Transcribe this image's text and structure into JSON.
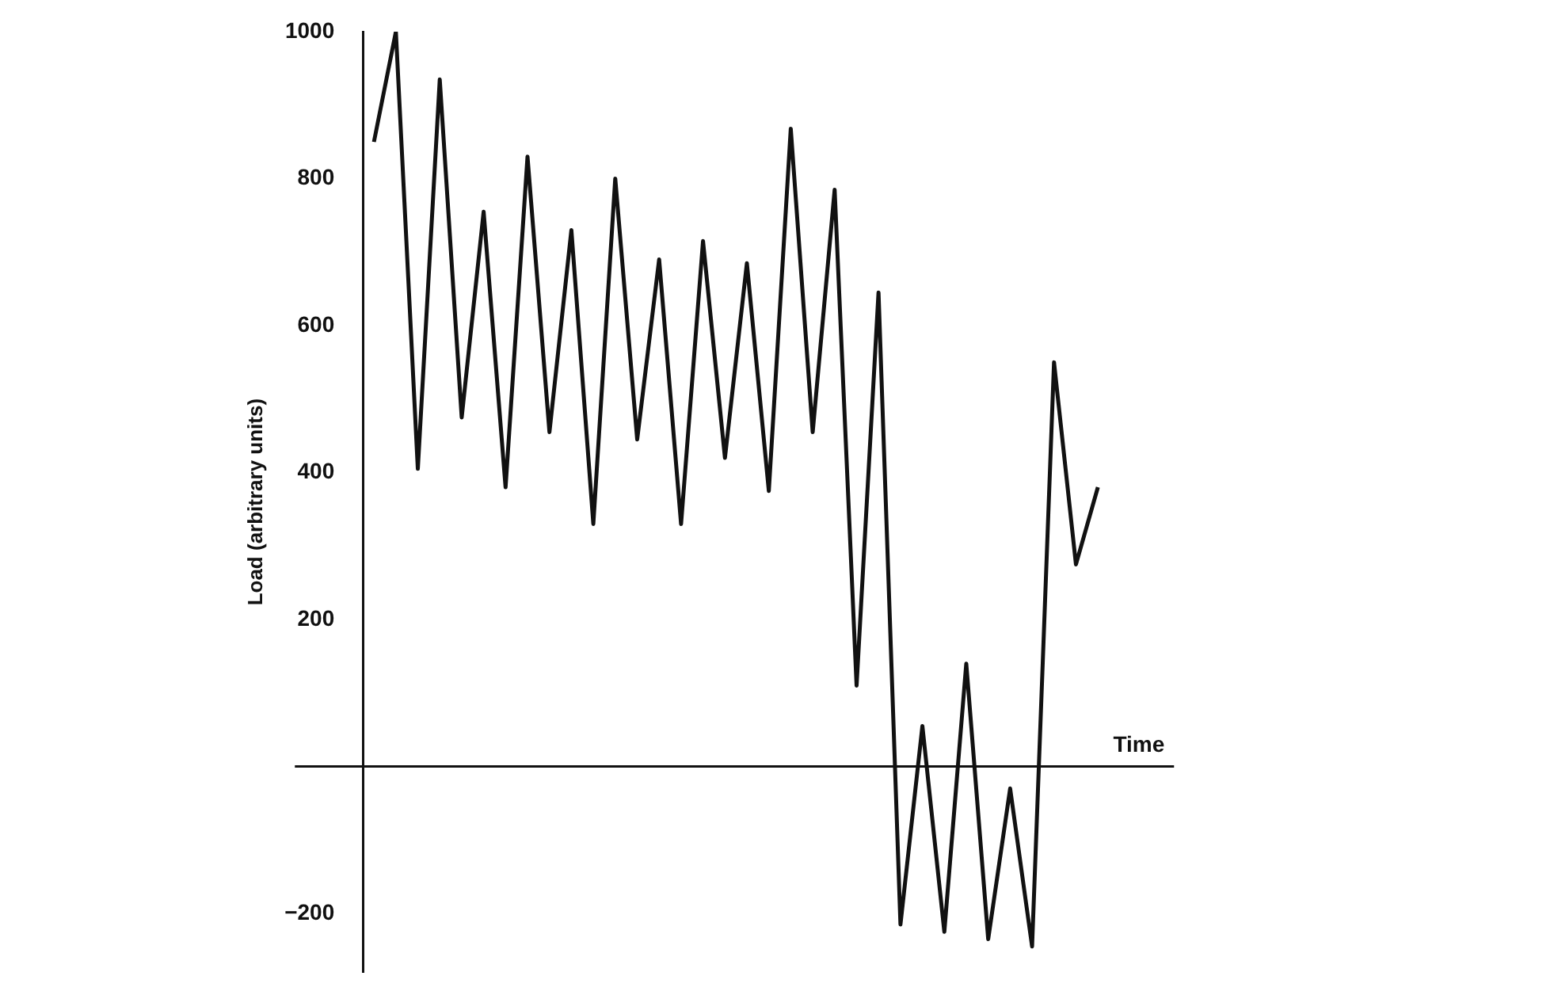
{
  "chart_data": {
    "type": "line",
    "xlabel": "Time",
    "ylabel": "Load (arbitrary units)",
    "categories": [
      null,
      null,
      null,
      null,
      null,
      null,
      null,
      null,
      null,
      null,
      null,
      null,
      null,
      null,
      null,
      null,
      null,
      null,
      null,
      null,
      null,
      null,
      null,
      null,
      null,
      null,
      null,
      null,
      null,
      null,
      null,
      null,
      null,
      null
    ],
    "values": [
      850,
      1000,
      405,
      935,
      475,
      755,
      380,
      830,
      455,
      730,
      330,
      800,
      445,
      690,
      330,
      715,
      420,
      685,
      375,
      868,
      455,
      785,
      110,
      645,
      -215,
      55,
      -225,
      140,
      -235,
      -30,
      -245,
      550,
      275,
      380
    ],
    "color": "#111111",
    "ylim": [
      -280,
      1000
    ],
    "yticks": [
      {
        "value": -200,
        "label": "−200"
      },
      {
        "value": 0,
        "label": null
      },
      200,
      400,
      600,
      800,
      1000
    ]
  }
}
